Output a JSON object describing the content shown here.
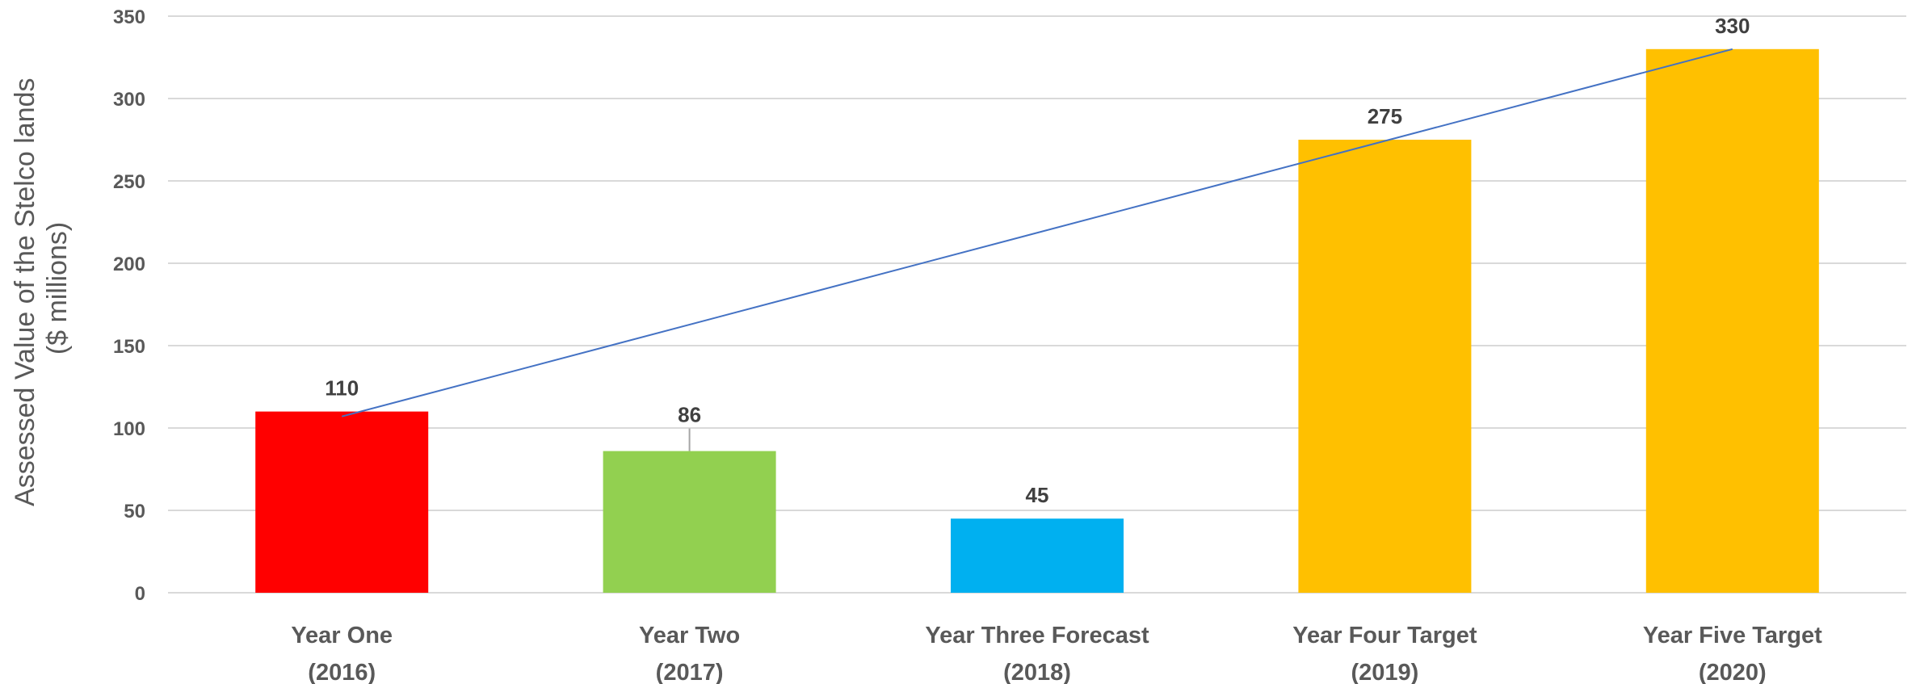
{
  "chart_data": {
    "type": "bar",
    "categories": [
      [
        "Year One",
        "(2016)"
      ],
      [
        "Year Two",
        "(2017)"
      ],
      [
        "Year Three Forecast",
        "(2018)"
      ],
      [
        "Year Four Target",
        "(2019)"
      ],
      [
        "Year Five Target",
        "(2020)"
      ]
    ],
    "values": [
      110,
      86,
      45,
      275,
      330
    ],
    "data_labels": [
      "110",
      "86",
      "45",
      "275",
      "330"
    ],
    "bar_colors": [
      "#ff0000",
      "#92d050",
      "#00b0f0",
      "#ffc000",
      "#ffc000"
    ],
    "ylabel": [
      "Assessed Value of the Stelco lands",
      "($ millions)"
    ],
    "xlabel": "",
    "ylim": [
      0,
      350
    ],
    "yticks": [
      0,
      50,
      100,
      150,
      200,
      250,
      300,
      350
    ],
    "grid": true,
    "legend": "none",
    "trendline": {
      "type": "linear",
      "color": "#4472c4",
      "from_category": "Year One",
      "to_category": "Year Five Target",
      "start_value": 107,
      "end_value": 330
    }
  }
}
